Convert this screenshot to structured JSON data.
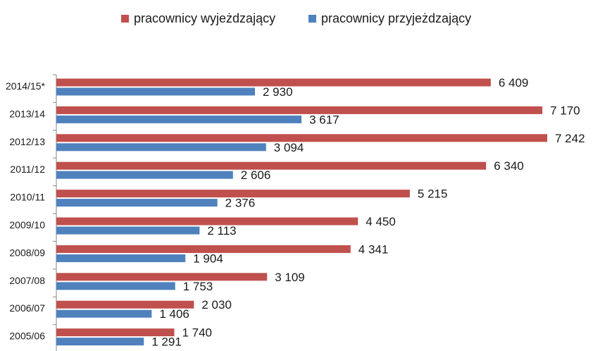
{
  "chart_data": {
    "type": "bar",
    "orientation": "horizontal",
    "categories": [
      "2014/15*",
      "2013/14",
      "2012/13",
      "2011/12",
      "2010/11",
      "2009/10",
      "2008/09",
      "2007/08",
      "2006/07",
      "2005/06"
    ],
    "series": [
      {
        "name": "pracownicy wyjeżdzający",
        "color": "#c0504d",
        "values": [
          6409,
          7170,
          7242,
          6340,
          5215,
          4450,
          4341,
          3109,
          2030,
          1740
        ],
        "labels": [
          "6 409",
          "7 170",
          "7 242",
          "6 340",
          "5 215",
          "4 450",
          "4 341",
          "3 109",
          "2 030",
          "1 740"
        ]
      },
      {
        "name": "pracownicy przyjeżdzający",
        "color": "#4f81bd",
        "values": [
          2930,
          3617,
          3094,
          2606,
          2376,
          2113,
          1904,
          1753,
          1406,
          1291
        ],
        "labels": [
          "2 930",
          "3 617",
          "3 094",
          "2 606",
          "2 376",
          "2 113",
          "1 904",
          "1 753",
          "1 406",
          "1 291"
        ]
      }
    ],
    "xlim": [
      0,
      8000
    ],
    "grid": false,
    "legend_position": "top"
  }
}
